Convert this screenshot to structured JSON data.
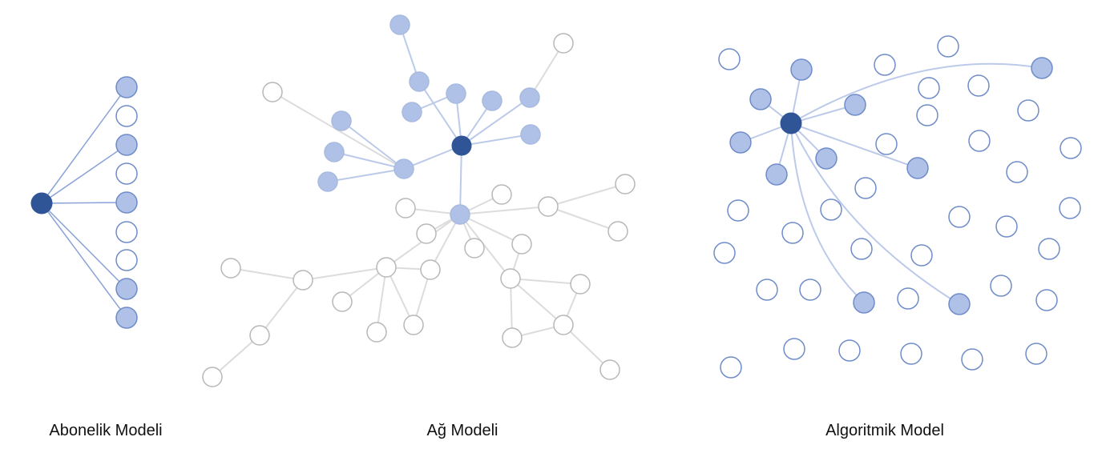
{
  "panels": [
    {
      "caption": "Abonelik Modeli"
    },
    {
      "caption": "Ağ Modeli"
    },
    {
      "caption": "Algoritmik Model"
    }
  ]
}
